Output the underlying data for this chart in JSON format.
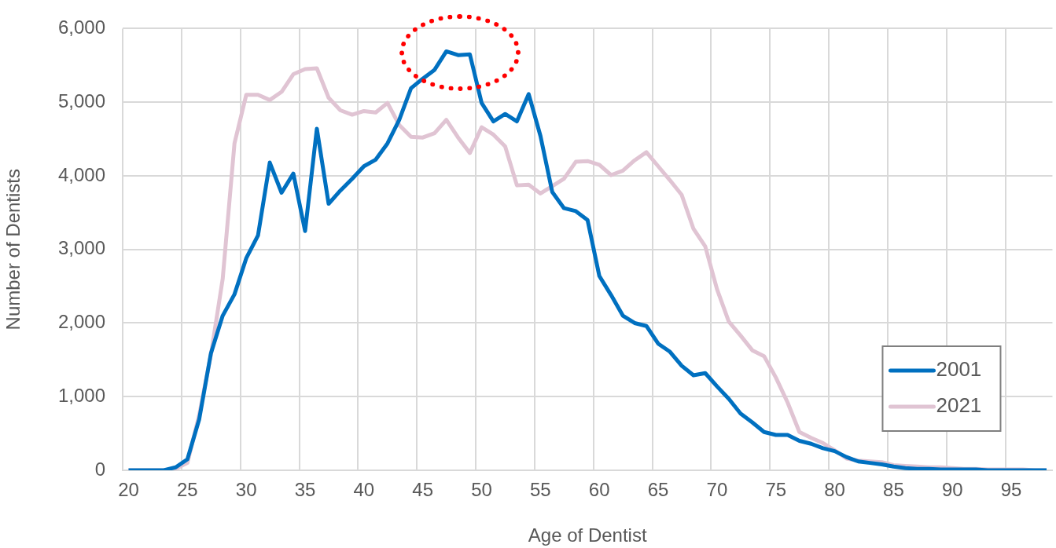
{
  "chart_data": {
    "type": "line",
    "xlabel": "Age of Dentist",
    "ylabel": "Number of Dentists",
    "categories": [
      "20",
      null,
      null,
      null,
      null,
      "25",
      null,
      null,
      null,
      null,
      "30",
      null,
      null,
      null,
      null,
      "35",
      null,
      null,
      null,
      null,
      "40",
      null,
      null,
      null,
      null,
      "45",
      null,
      null,
      null,
      null,
      "50",
      null,
      null,
      null,
      null,
      "55",
      null,
      null,
      null,
      null,
      "60",
      null,
      null,
      null,
      null,
      "65",
      null,
      null,
      null,
      null,
      "70",
      null,
      null,
      null,
      null,
      "75",
      null,
      null,
      null,
      null,
      "80",
      null,
      null,
      null,
      null,
      "85",
      null,
      null,
      null,
      null,
      "90",
      null,
      null,
      null,
      null,
      "95",
      null,
      null,
      null
    ],
    "series": [
      {
        "name": "2001",
        "color": "#0070c0",
        "values": [
          0,
          0,
          0,
          0,
          40,
          150,
          690,
          1590,
          2100,
          2390,
          2880,
          3190,
          4180,
          3770,
          4030,
          3250,
          4640,
          3620,
          3800,
          3960,
          4130,
          4220,
          4440,
          4760,
          5190,
          5320,
          5440,
          5690,
          5640,
          5650,
          4990,
          4740,
          4840,
          4740,
          5110,
          4540,
          3780,
          3560,
          3520,
          3400,
          2640,
          2380,
          2100,
          2000,
          1960,
          1720,
          1610,
          1420,
          1290,
          1320,
          1140,
          970,
          770,
          650,
          520,
          480,
          480,
          400,
          360,
          300,
          260,
          180,
          120,
          100,
          80,
          50,
          30,
          20,
          20,
          10,
          10,
          10,
          10,
          0,
          0,
          0,
          0,
          0,
          0
        ]
      },
      {
        "name": "2021",
        "color": "#e0c4d3",
        "values": [
          0,
          0,
          0,
          0,
          20,
          100,
          750,
          1570,
          2600,
          4440,
          5100,
          5100,
          5030,
          5140,
          5380,
          5450,
          5460,
          5060,
          4890,
          4830,
          4880,
          4860,
          4990,
          4690,
          4530,
          4520,
          4580,
          4760,
          4520,
          4310,
          4660,
          4560,
          4400,
          3870,
          3880,
          3760,
          3860,
          3960,
          4190,
          4200,
          4150,
          4010,
          4070,
          4210,
          4320,
          4130,
          3940,
          3740,
          3280,
          3040,
          2460,
          2020,
          1830,
          1630,
          1550,
          1260,
          920,
          520,
          440,
          370,
          270,
          160,
          130,
          120,
          110,
          70,
          60,
          50,
          40,
          40,
          30,
          20,
          20,
          10,
          10,
          10,
          10,
          0,
          0
        ]
      }
    ],
    "ylim": [
      0,
      6000
    ],
    "yticks": [
      0,
      {
        "value": 1000,
        "label": "1,000"
      },
      {
        "value": 2000,
        "label": "2,000"
      },
      {
        "value": 3000,
        "label": "3,000"
      },
      {
        "value": 4000,
        "label": "4,000"
      },
      {
        "value": 5000,
        "label": "5,000"
      },
      {
        "value": 6000,
        "label": "6,000"
      }
    ],
    "grid": true,
    "legend": "bottom right",
    "marker": "none",
    "line_style": "solid"
  }
}
